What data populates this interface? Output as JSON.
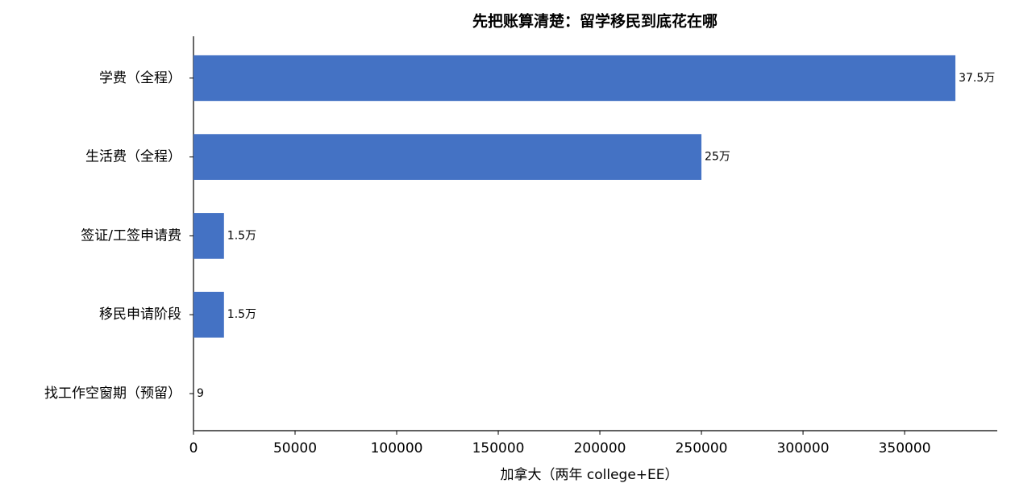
{
  "chart_data": {
    "type": "barh",
    "title": "先把账算清楚：留学移民到底花在哪",
    "xlabel": "加拿大（两年 college+EE）",
    "categories": [
      "学费（全程）",
      "生活费（全程）",
      "签证/工签申请费",
      "移民申请阶段",
      "找工作空窗期（预留）"
    ],
    "values": [
      375000,
      250000,
      15000,
      15000,
      9
    ],
    "value_labels": [
      "37.5万",
      "25万",
      "1.5万",
      "1.5万",
      "9"
    ],
    "color": "#4472c4",
    "xlim": [
      0,
      395600
    ],
    "xticks": [
      0,
      50000,
      100000,
      150000,
      200000,
      250000,
      300000,
      350000
    ]
  }
}
